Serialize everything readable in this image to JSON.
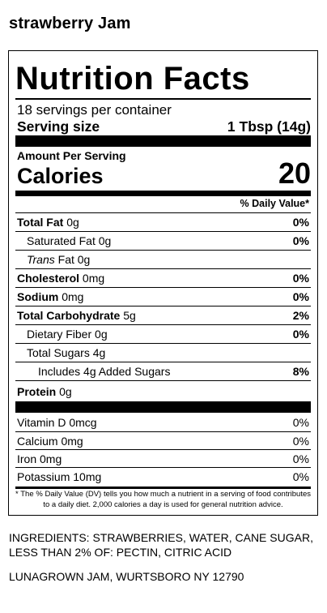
{
  "product": {
    "title": "strawberry Jam"
  },
  "nutrition": {
    "title": "Nutrition Facts",
    "servings_per_container": "18 servings per container",
    "serving_size_label": "Serving size",
    "serving_size_value": "1 Tbsp (14g)",
    "amount_per_serving": "Amount Per Serving",
    "calories_label": "Calories",
    "calories_value": "20",
    "dv_header": "% Daily Value*",
    "total_fat": {
      "label": "Total Fat",
      "amount": "0g",
      "dv": "0%"
    },
    "saturated_fat": {
      "label": "Saturated Fat",
      "amount": "0g",
      "dv": "0%"
    },
    "trans_fat": {
      "label_italic": "Trans",
      "label": "Fat",
      "amount": "0g"
    },
    "cholesterol": {
      "label": "Cholesterol",
      "amount": "0mg",
      "dv": "0%"
    },
    "sodium": {
      "label": "Sodium",
      "amount": "0mg",
      "dv": "0%"
    },
    "total_carb": {
      "label": "Total Carbohydrate",
      "amount": "5g",
      "dv": "2%"
    },
    "dietary_fiber": {
      "label": "Dietary Fiber",
      "amount": "0g",
      "dv": "0%"
    },
    "total_sugars": {
      "label": "Total Sugars",
      "amount": "4g"
    },
    "added_sugars": {
      "label": "Includes 4g Added Sugars",
      "dv": "8%"
    },
    "protein": {
      "label": "Protein",
      "amount": "0g"
    },
    "vitamins": [
      {
        "label": "Vitamin D 0mcg",
        "dv": "0%"
      },
      {
        "label": "Calcium 0mg",
        "dv": "0%"
      },
      {
        "label": "Iron 0mg",
        "dv": "0%"
      },
      {
        "label": "Potassium 10mg",
        "dv": "0%"
      }
    ],
    "footnote": "* The % Daily Value (DV) tells you how much a nutrient in a serving of food contributes to a daily diet. 2,000 calories a day is used for general nutrition advice."
  },
  "ingredients": "INGREDIENTS: STRAWBERRIES, WATER, CANE SUGAR, LESS THAN 2% OF: PECTIN, CITRIC ACID",
  "manufacturer": "LUNAGROWN JAM, WURTSBORO NY 12790"
}
